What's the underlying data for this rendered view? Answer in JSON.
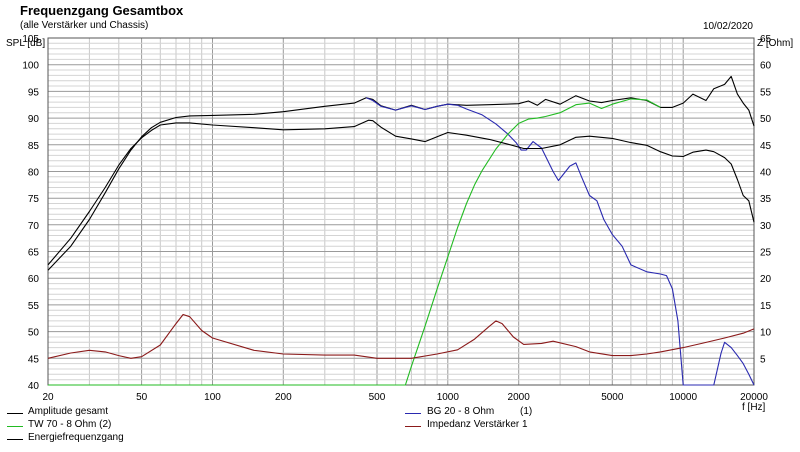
{
  "header": {
    "title": "Frequenzgang Gesamtbox",
    "subtitle": "(alle Verstärker und Chassis)",
    "date": "10/02/2020"
  },
  "axes": {
    "left_unit": "SPL [dB]",
    "right_unit": "Z [Ohm]",
    "x_unit": "f [Hz]"
  },
  "chart_data": {
    "type": "line",
    "title": "Frequenzgang Gesamtbox",
    "subtitle": "(alle Verstärker und Chassis)",
    "xlabel": "f [Hz]",
    "ylabel": "SPL [dB]",
    "y2label": "Z [Ohm]",
    "x_scale": "log",
    "xlim": [
      20,
      20000
    ],
    "ylim": [
      40,
      105
    ],
    "y2lim": [
      0,
      65
    ],
    "grid": true,
    "legend_position": "bottom",
    "x_ticks": [
      20,
      50,
      100,
      200,
      500,
      1000,
      2000,
      5000,
      10000,
      20000
    ],
    "x_tick_labels": [
      "20",
      "50",
      "100",
      "200",
      "500",
      "1000",
      "2000",
      "5000",
      "10000",
      "20000"
    ],
    "y_ticks": [
      40,
      45,
      50,
      55,
      60,
      65,
      70,
      75,
      80,
      85,
      90,
      95,
      100,
      105
    ],
    "y_tick_labels": [
      "40",
      "45",
      "50",
      "55",
      "60",
      "65",
      "70",
      "75",
      "80",
      "85",
      "90",
      "95",
      "100",
      "105"
    ],
    "y2_ticks": [
      5,
      10,
      15,
      20,
      25,
      30,
      35,
      40,
      45,
      50,
      55,
      60,
      65
    ],
    "y2_tick_labels": [
      "5",
      "10",
      "15",
      "20",
      "25",
      "30",
      "35",
      "40",
      "45",
      "50",
      "55",
      "60",
      "65"
    ],
    "series": [
      {
        "name": "Amplitude gesamt",
        "axis": "left",
        "color": "#000000",
        "points": [
          [
            20,
            61.5
          ],
          [
            25,
            66
          ],
          [
            30,
            71
          ],
          [
            35,
            76
          ],
          [
            40,
            80.5
          ],
          [
            45,
            84
          ],
          [
            50,
            86.5
          ],
          [
            55,
            88.2
          ],
          [
            60,
            89.2
          ],
          [
            70,
            90.1
          ],
          [
            80,
            90.4
          ],
          [
            100,
            90.5
          ],
          [
            150,
            90.7
          ],
          [
            200,
            91.2
          ],
          [
            300,
            92.2
          ],
          [
            400,
            92.8
          ],
          [
            450,
            93.8
          ],
          [
            480,
            93.5
          ],
          [
            520,
            92.3
          ],
          [
            600,
            91.5
          ],
          [
            700,
            92.4
          ],
          [
            800,
            91.6
          ],
          [
            900,
            92.2
          ],
          [
            1000,
            92.6
          ],
          [
            1200,
            92.4
          ],
          [
            1500,
            92.5
          ],
          [
            2000,
            92.7
          ],
          [
            2200,
            93.2
          ],
          [
            2400,
            92.4
          ],
          [
            2600,
            93.5
          ],
          [
            3000,
            92.6
          ],
          [
            3500,
            94.2
          ],
          [
            4000,
            93.2
          ],
          [
            4500,
            92.9
          ],
          [
            5000,
            93.3
          ],
          [
            6000,
            93.8
          ],
          [
            7000,
            93.3
          ],
          [
            8000,
            92.0
          ],
          [
            9000,
            92.0
          ],
          [
            10000,
            92.8
          ],
          [
            11000,
            94.5
          ],
          [
            12500,
            93.3
          ],
          [
            13500,
            95.5
          ],
          [
            15000,
            96.3
          ],
          [
            16000,
            97.8
          ],
          [
            17000,
            94.5
          ],
          [
            18000,
            92.8
          ],
          [
            19000,
            91.5
          ],
          [
            20000,
            88.5
          ]
        ]
      },
      {
        "name": "BG 20 - 8 Ohm",
        "number": "(1)",
        "axis": "left",
        "color": "#2a2ab0",
        "points": [
          [
            450,
            93.8
          ],
          [
            480,
            93.3
          ],
          [
            520,
            92.2
          ],
          [
            600,
            91.5
          ],
          [
            700,
            92.3
          ],
          [
            800,
            91.6
          ],
          [
            900,
            92.2
          ],
          [
            1000,
            92.6
          ],
          [
            1100,
            92.4
          ],
          [
            1200,
            91.7
          ],
          [
            1400,
            90.6
          ],
          [
            1600,
            88.9
          ],
          [
            1800,
            87.0
          ],
          [
            1950,
            85.4
          ],
          [
            2050,
            84.0
          ],
          [
            2150,
            84.0
          ],
          [
            2300,
            85.6
          ],
          [
            2500,
            84.4
          ],
          [
            2800,
            80.0
          ],
          [
            2950,
            78.3
          ],
          [
            3100,
            79.5
          ],
          [
            3300,
            81.0
          ],
          [
            3500,
            81.6
          ],
          [
            3700,
            79.0
          ],
          [
            4000,
            75.5
          ],
          [
            4300,
            74.5
          ],
          [
            4600,
            71.0
          ],
          [
            5000,
            68.2
          ],
          [
            5500,
            66.0
          ],
          [
            6000,
            62.5
          ],
          [
            7000,
            61.2
          ],
          [
            8000,
            60.8
          ],
          [
            8500,
            60.5
          ],
          [
            9000,
            58.0
          ],
          [
            9500,
            52.0
          ],
          [
            10000,
            40.0
          ],
          [
            12000,
            40.0
          ],
          [
            13500,
            40.0
          ],
          [
            14500,
            46.0
          ],
          [
            15000,
            48.0
          ],
          [
            16000,
            47.0
          ],
          [
            17000,
            45.5
          ],
          [
            18000,
            44.0
          ],
          [
            19000,
            42.0
          ],
          [
            20000,
            40.0
          ]
        ]
      },
      {
        "name": "TW 70 - 8 Ohm",
        "number": "(2)",
        "axis": "left",
        "color": "#22bb22",
        "points": [
          [
            20,
            40.0
          ],
          [
            600,
            40.0
          ],
          [
            660,
            40.0
          ],
          [
            700,
            43.5
          ],
          [
            800,
            51.0
          ],
          [
            900,
            58.0
          ],
          [
            1000,
            64.0
          ],
          [
            1100,
            69.5
          ],
          [
            1200,
            74.0
          ],
          [
            1300,
            77.5
          ],
          [
            1400,
            80.2
          ],
          [
            1600,
            84.2
          ],
          [
            1800,
            87.0
          ],
          [
            2000,
            89.0
          ],
          [
            2200,
            89.8
          ],
          [
            2400,
            90.0
          ],
          [
            2600,
            90.3
          ],
          [
            3000,
            91.0
          ],
          [
            3500,
            92.5
          ],
          [
            4000,
            92.8
          ],
          [
            4500,
            91.8
          ],
          [
            5000,
            92.6
          ],
          [
            6000,
            93.6
          ],
          [
            7000,
            93.4
          ],
          [
            8000,
            92.0
          ]
        ]
      },
      {
        "name": "Impedanz Verstärker 1",
        "axis": "right",
        "color": "#8b1a1a",
        "points": [
          [
            20,
            5.0
          ],
          [
            25,
            6.0
          ],
          [
            30,
            6.5
          ],
          [
            35,
            6.2
          ],
          [
            40,
            5.5
          ],
          [
            45,
            5.0
          ],
          [
            50,
            5.3
          ],
          [
            60,
            7.5
          ],
          [
            70,
            11.5
          ],
          [
            75,
            13.2
          ],
          [
            80,
            12.8
          ],
          [
            90,
            10.2
          ],
          [
            100,
            8.8
          ],
          [
            150,
            6.5
          ],
          [
            200,
            5.8
          ],
          [
            300,
            5.6
          ],
          [
            400,
            5.6
          ],
          [
            500,
            5.0
          ],
          [
            700,
            5.0
          ],
          [
            900,
            5.8
          ],
          [
            1100,
            6.6
          ],
          [
            1300,
            8.6
          ],
          [
            1500,
            11.0
          ],
          [
            1600,
            12.0
          ],
          [
            1700,
            11.5
          ],
          [
            1900,
            9.0
          ],
          [
            2100,
            7.6
          ],
          [
            2500,
            7.8
          ],
          [
            2800,
            8.2
          ],
          [
            3500,
            7.2
          ],
          [
            4000,
            6.2
          ],
          [
            5000,
            5.5
          ],
          [
            6000,
            5.5
          ],
          [
            7000,
            5.8
          ],
          [
            8000,
            6.2
          ],
          [
            10000,
            7.0
          ],
          [
            12000,
            7.8
          ],
          [
            15000,
            8.8
          ],
          [
            18000,
            9.7
          ],
          [
            20000,
            10.5
          ]
        ]
      },
      {
        "name": "Energiefrequenzgang",
        "axis": "left",
        "color": "#000000",
        "points": [
          [
            20,
            62.5
          ],
          [
            25,
            67.5
          ],
          [
            30,
            72.5
          ],
          [
            35,
            77
          ],
          [
            40,
            81.2
          ],
          [
            45,
            84.3
          ],
          [
            50,
            86.3
          ],
          [
            55,
            87.7
          ],
          [
            60,
            88.7
          ],
          [
            70,
            89.1
          ],
          [
            80,
            89.1
          ],
          [
            100,
            88.7
          ],
          [
            150,
            88.2
          ],
          [
            200,
            87.8
          ],
          [
            300,
            88.0
          ],
          [
            400,
            88.4
          ],
          [
            460,
            89.6
          ],
          [
            480,
            89.5
          ],
          [
            520,
            88.3
          ],
          [
            600,
            86.6
          ],
          [
            700,
            86.1
          ],
          [
            800,
            85.6
          ],
          [
            900,
            86.5
          ],
          [
            1000,
            87.3
          ],
          [
            1200,
            86.8
          ],
          [
            1500,
            86.0
          ],
          [
            1800,
            85.1
          ],
          [
            2100,
            84.3
          ],
          [
            2500,
            84.3
          ],
          [
            3000,
            85.0
          ],
          [
            3500,
            86.4
          ],
          [
            4000,
            86.6
          ],
          [
            5000,
            86.2
          ],
          [
            6000,
            85.4
          ],
          [
            7000,
            84.9
          ],
          [
            8000,
            83.7
          ],
          [
            9000,
            82.9
          ],
          [
            10000,
            82.8
          ],
          [
            11000,
            83.6
          ],
          [
            12500,
            84.0
          ],
          [
            13500,
            83.7
          ],
          [
            15000,
            82.6
          ],
          [
            16000,
            81.4
          ],
          [
            17000,
            78.5
          ],
          [
            18000,
            75.5
          ],
          [
            19000,
            74.5
          ],
          [
            20000,
            70.5
          ]
        ]
      }
    ]
  },
  "legend": [
    {
      "label": "Amplitude gesamt",
      "number": "",
      "color": "#000000"
    },
    {
      "label": "TW 70 - 8 Ohm (2)",
      "number": "",
      "color": "#22bb22"
    },
    {
      "label": "Energiefrequenzgang",
      "number": "",
      "color": "#000000"
    },
    {
      "label": "BG 20 - 8 Ohm",
      "number": "(1)",
      "color": "#2a2ab0"
    },
    {
      "label": "Impedanz Verstärker 1",
      "number": "",
      "color": "#8b1a1a"
    }
  ]
}
